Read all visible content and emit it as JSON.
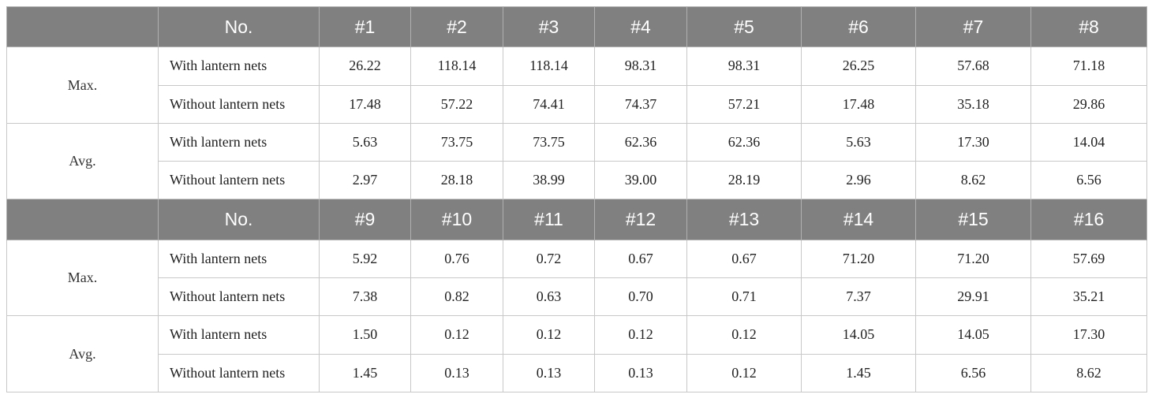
{
  "blocks": [
    {
      "header_label": "No.",
      "columns": [
        "#1",
        "#2",
        "#3",
        "#4",
        "#5",
        "#6",
        "#7",
        "#8"
      ],
      "groups": [
        {
          "metric": "Max.",
          "rows": [
            {
              "condition": "With lantern nets",
              "values": [
                "26.22",
                "118.14",
                "118.14",
                "98.31",
                "98.31",
                "26.25",
                "57.68",
                "71.18"
              ]
            },
            {
              "condition": "Without lantern nets",
              "values": [
                "17.48",
                "57.22",
                "74.41",
                "74.37",
                "57.21",
                "17.48",
                "35.18",
                "29.86"
              ]
            }
          ]
        },
        {
          "metric": "Avg.",
          "rows": [
            {
              "condition": "With lantern nets",
              "values": [
                "5.63",
                "73.75",
                "73.75",
                "62.36",
                "62.36",
                "5.63",
                "17.30",
                "14.04"
              ]
            },
            {
              "condition": "Without lantern nets",
              "values": [
                "2.97",
                "28.18",
                "38.99",
                "39.00",
                "28.19",
                "2.96",
                "8.62",
                "6.56"
              ]
            }
          ]
        }
      ]
    },
    {
      "header_label": "No.",
      "columns": [
        "#9",
        "#10",
        "#11",
        "#12",
        "#13",
        "#14",
        "#15",
        "#16"
      ],
      "groups": [
        {
          "metric": "Max.",
          "rows": [
            {
              "condition": "With lantern nets",
              "values": [
                "5.92",
                "0.76",
                "0.72",
                "0.67",
                "0.67",
                "71.20",
                "71.20",
                "57.69"
              ]
            },
            {
              "condition": "Without lantern nets",
              "values": [
                "7.38",
                "0.82",
                "0.63",
                "0.70",
                "0.71",
                "7.37",
                "29.91",
                "35.21"
              ]
            }
          ]
        },
        {
          "metric": "Avg.",
          "rows": [
            {
              "condition": "With lantern nets",
              "values": [
                "1.50",
                "0.12",
                "0.12",
                "0.12",
                "0.12",
                "14.05",
                "14.05",
                "17.30"
              ]
            },
            {
              "condition": "Without lantern nets",
              "values": [
                "1.45",
                "0.13",
                "0.13",
                "0.13",
                "0.12",
                "1.45",
                "6.56",
                "8.62"
              ]
            }
          ]
        }
      ]
    }
  ]
}
